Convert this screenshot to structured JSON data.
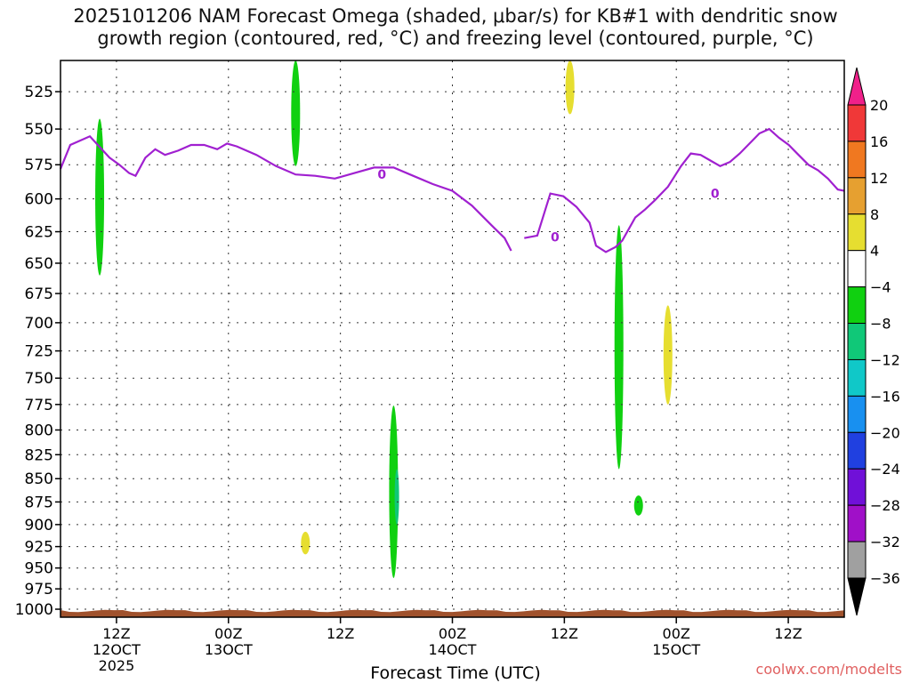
{
  "title": "2025101206 NAM Forecast Omega (shaded, μbar/s) for KB#1 with dendritic snow\ngrowth region (contoured, red, °C) and freezing level (contoured, purple, °C)",
  "credit": "coolwx.com/modelts",
  "chart_data": {
    "type": "heatmap",
    "title": "2025101206 NAM Forecast Omega (shaded, μbar/s) for KB#1 with dendritic snow growth region (contoured, red, °C) and freezing level (contoured, purple, °C)",
    "xlabel": "Forecast Time (UTC)",
    "ylabel": "",
    "y_scale": "log-pressure",
    "ylim": [
      1010,
      505
    ],
    "y_ticks": [
      525,
      550,
      575,
      600,
      625,
      650,
      675,
      700,
      725,
      750,
      775,
      800,
      825,
      850,
      875,
      900,
      925,
      950,
      975,
      1000
    ],
    "xlim": [
      "2025-10-12 06Z",
      "2025-10-15 18Z"
    ],
    "x_ticks": [
      {
        "time": "2025-10-12 12Z",
        "lines": [
          "12Z",
          "12OCT",
          "2025"
        ]
      },
      {
        "time": "2025-10-13 00Z",
        "lines": [
          "00Z",
          "13OCT"
        ]
      },
      {
        "time": "2025-10-13 12Z",
        "lines": [
          "12Z"
        ]
      },
      {
        "time": "2025-10-14 00Z",
        "lines": [
          "00Z",
          "14OCT"
        ]
      },
      {
        "time": "2025-10-14 12Z",
        "lines": [
          "12Z"
        ]
      },
      {
        "time": "2025-10-15 00Z",
        "lines": [
          "00Z",
          "15OCT"
        ]
      },
      {
        "time": "2025-10-15 12Z",
        "lines": [
          "12Z"
        ]
      }
    ],
    "grid": true,
    "colorbar": {
      "levels": [
        -36,
        -32,
        -28,
        -24,
        -20,
        -16,
        -12,
        -8,
        -4,
        4,
        8,
        12,
        16,
        20
      ],
      "labels": [
        "20",
        "16",
        "12",
        "8",
        "4",
        "−4",
        "−8",
        "−12",
        "−16",
        "−20",
        "−24",
        "−28",
        "−32",
        "−36"
      ],
      "colors_top_to_bottom": [
        "#f0208a",
        "#f03838",
        "#f07820",
        "#e6a030",
        "#e6de30",
        "#ffffff",
        "#10d010",
        "#10c878",
        "#10c8c8",
        "#1890f0",
        "#2040e0",
        "#7010d8",
        "#a010c8",
        "#a0a0a0",
        "#000000"
      ]
    },
    "freezing_level": {
      "color": "#a020d0",
      "label": "0",
      "points": [
        [
          0,
          578
        ],
        [
          3,
          561
        ],
        [
          9,
          555
        ],
        [
          15,
          570
        ],
        [
          18,
          575
        ],
        [
          21,
          581
        ],
        [
          23,
          583
        ],
        [
          26,
          570
        ],
        [
          29,
          564
        ],
        [
          32,
          568
        ],
        [
          36,
          565
        ],
        [
          40,
          561
        ],
        [
          44,
          561
        ],
        [
          48,
          564
        ],
        [
          51,
          560
        ],
        [
          54,
          562
        ],
        [
          60,
          568
        ],
        [
          66,
          576
        ],
        [
          72,
          582
        ],
        [
          78,
          583
        ],
        [
          84,
          585
        ],
        [
          90,
          581
        ],
        [
          96,
          577
        ],
        [
          102,
          577
        ],
        [
          108,
          583
        ],
        [
          114,
          589
        ],
        [
          120,
          594
        ],
        [
          126,
          605
        ],
        [
          132,
          620
        ],
        [
          136,
          630
        ],
        [
          138,
          640
        ],
        [
          142,
          630
        ],
        [
          146,
          628
        ],
        [
          150,
          596
        ],
        [
          154,
          598
        ],
        [
          158,
          606
        ],
        [
          162,
          618
        ],
        [
          164,
          636
        ],
        [
          167,
          641
        ],
        [
          170,
          637
        ],
        [
          172,
          632
        ],
        [
          176,
          614
        ],
        [
          179,
          608
        ],
        [
          182,
          601
        ],
        [
          186,
          591
        ],
        [
          190,
          576
        ],
        [
          193,
          567
        ],
        [
          196,
          568
        ],
        [
          199,
          572
        ],
        [
          202,
          576
        ],
        [
          205,
          573
        ],
        [
          208,
          567
        ],
        [
          211,
          560
        ],
        [
          214,
          553
        ],
        [
          217,
          550
        ],
        [
          220,
          556
        ],
        [
          223,
          561
        ],
        [
          226,
          568
        ],
        [
          229,
          575
        ],
        [
          232,
          579
        ],
        [
          235,
          585
        ],
        [
          238,
          593
        ],
        [
          240,
          594
        ]
      ]
    },
    "omega_shaded": [
      {
        "level": "-4 to -8",
        "t_center": 12,
        "p_range": [
          543,
          660
        ],
        "color": "#10d010"
      },
      {
        "level": "-4 to -8",
        "t_center": 72,
        "p_range": [
          505,
          576
        ],
        "color": "#10d010"
      },
      {
        "level": "4 to 8",
        "t_center": 156,
        "p_range": [
          505,
          540
        ],
        "color": "#e6de30"
      },
      {
        "level": "-4 to -8",
        "t_center": 102,
        "p_range": [
          776,
          962
        ],
        "color": "#10d010"
      },
      {
        "level": "-8 to -12",
        "t_center": 103,
        "p_range": [
          840,
          900
        ],
        "color": "#10c878"
      },
      {
        "level": "4 to 8",
        "t_center": 75,
        "p_range": [
          908,
          934
        ],
        "color": "#e6de30"
      },
      {
        "level": "-4 to -8",
        "t_center": 171,
        "p_range": [
          620,
          840
        ],
        "color": "#10d010"
      },
      {
        "level": "-4 to -8",
        "t_center": 177,
        "p_range": [
          868,
          890
        ],
        "color": "#10d010"
      },
      {
        "level": "4 to 8",
        "t_center": 186,
        "p_range": [
          685,
          775
        ],
        "color": "#e6de30"
      }
    ],
    "terrain": {
      "color": "#a0522d",
      "surface_pressure_hpa": 1000
    }
  }
}
